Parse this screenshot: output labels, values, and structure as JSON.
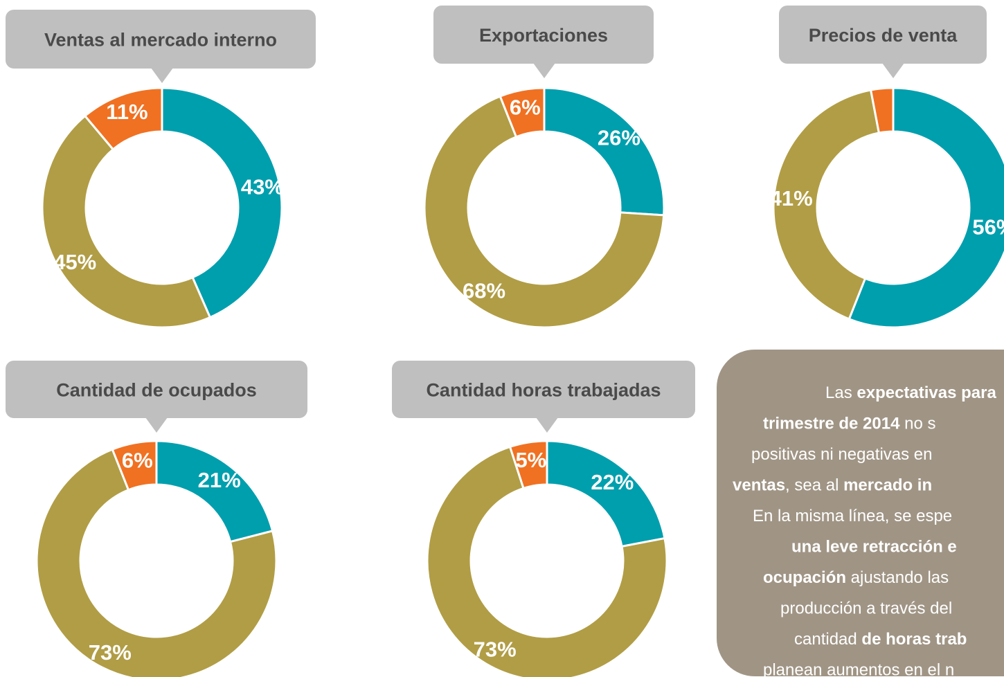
{
  "chart_data": [
    {
      "type": "donut",
      "title": "Ventas al mercado interno",
      "values": [
        43,
        45,
        11
      ],
      "value_labels": [
        "43%",
        "45%",
        "11%"
      ],
      "colors": [
        "#009fae",
        "#b19d45",
        "#f07122"
      ]
    },
    {
      "type": "donut",
      "title": "Exportaciones",
      "values": [
        26,
        68,
        6
      ],
      "value_labels": [
        "26%",
        "68%",
        "6%"
      ],
      "colors": [
        "#009fae",
        "#b19d45",
        "#f07122"
      ]
    },
    {
      "type": "donut",
      "title": "Precios de venta",
      "values": [
        56,
        41,
        3
      ],
      "value_labels": [
        "56%",
        "41%",
        null
      ],
      "colors": [
        "#009fae",
        "#b19d45",
        "#f07122"
      ]
    },
    {
      "type": "donut",
      "title": "Cantidad de ocupados",
      "values": [
        21,
        73,
        6
      ],
      "value_labels": [
        "21%",
        "73%",
        "6%"
      ],
      "colors": [
        "#009fae",
        "#b19d45",
        "#f07122"
      ]
    },
    {
      "type": "donut",
      "title": "Cantidad horas trabajadas",
      "values": [
        22,
        73,
        5
      ],
      "value_labels": [
        "22%",
        "73%",
        "5%"
      ],
      "colors": [
        "#009fae",
        "#b19d45",
        "#f07122"
      ]
    }
  ],
  "note": [
    [
      {
        "text": "Las ",
        "bold": false
      },
      {
        "text": "expectativas para",
        "bold": true
      }
    ],
    [
      {
        "text": "trimestre de 2014",
        "bold": true
      },
      {
        "text": " no s",
        "bold": false
      }
    ],
    [
      {
        "text": "positivas ni negativas en",
        "bold": false
      }
    ],
    [
      {
        "text": "ventas",
        "bold": true
      },
      {
        "text": ", sea al ",
        "bold": false
      },
      {
        "text": "mercado in",
        "bold": true
      }
    ],
    [
      {
        "text": "En la misma línea, se espe",
        "bold": false
      }
    ],
    [
      {
        "text": "una leve retracción e",
        "bold": true
      }
    ],
    [
      {
        "text": "ocupación",
        "bold": true
      },
      {
        "text": " ajustando las",
        "bold": false
      }
    ],
    [
      {
        "text": "producción a través del",
        "bold": false
      }
    ],
    [
      {
        "text": "cantidad ",
        "bold": false
      },
      {
        "text": "de horas trab",
        "bold": true
      }
    ],
    [
      {
        "text": "planean aumentos en el n",
        "bold": false
      }
    ]
  ]
}
